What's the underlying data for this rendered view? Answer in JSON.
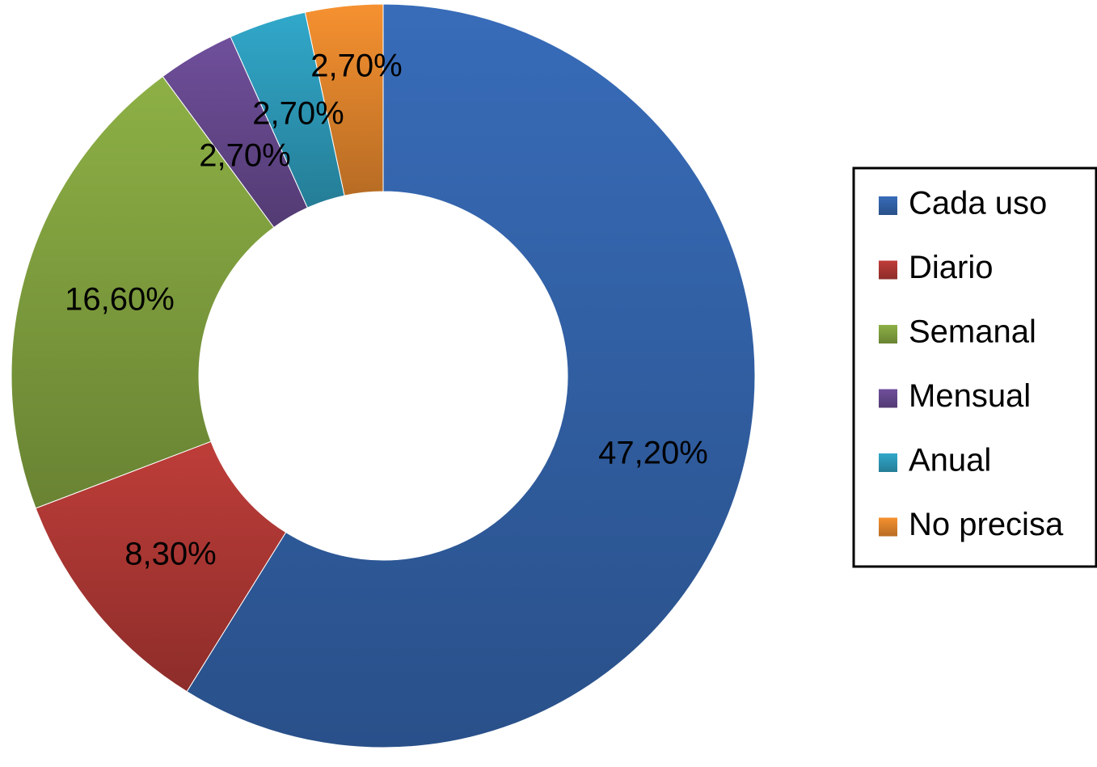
{
  "chart_data": {
    "type": "pie",
    "variant": "donut",
    "title": "",
    "categories": [
      "Cada uso",
      "Diario",
      "Semanal",
      "Mensual",
      "Anual",
      "No precisa"
    ],
    "values": [
      47.2,
      8.3,
      16.6,
      2.7,
      2.7,
      2.7
    ],
    "value_labels": [
      "47,20%",
      "8,30%",
      "16,60%",
      "2,70%",
      "2,70%",
      "2,70%"
    ],
    "colors": [
      "#3567b0",
      "#b53a36",
      "#86a842",
      "#6a4b94",
      "#2fa0c0",
      "#ea8a2e"
    ],
    "legend": {
      "position": "right",
      "entries": [
        "Cada uso",
        "Diario",
        "Semanal",
        "Mensual",
        "Anual",
        "No precisa"
      ]
    }
  }
}
